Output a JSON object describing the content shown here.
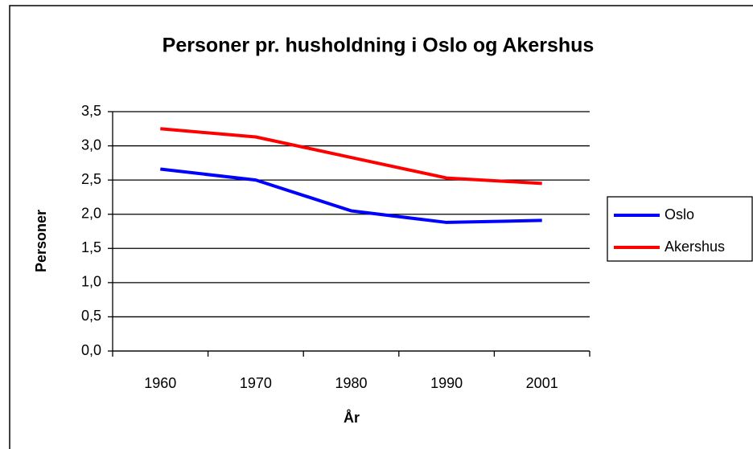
{
  "chart_data": {
    "type": "line",
    "title": "Personer pr. husholdning i Oslo og Akershus",
    "x_label": "År",
    "y_label": "Personer",
    "categories": [
      "1960",
      "1970",
      "1980",
      "1990",
      "2001"
    ],
    "series": [
      {
        "name": "Oslo",
        "color": "#0000ff",
        "values": [
          2.66,
          2.5,
          2.05,
          1.88,
          1.91
        ]
      },
      {
        "name": "Akershus",
        "color": "#ff0000",
        "values": [
          3.25,
          3.13,
          2.83,
          2.53,
          2.45
        ]
      }
    ],
    "ylim": [
      0,
      3.5
    ],
    "yticks": [
      {
        "value": 0,
        "label": "0,0"
      },
      {
        "value": 0.5,
        "label": "0,5"
      },
      {
        "value": 1,
        "label": "1,0"
      },
      {
        "value": 1.5,
        "label": "1,5"
      },
      {
        "value": 2,
        "label": "2,0"
      },
      {
        "value": 2.5,
        "label": "2,5"
      },
      {
        "value": 3,
        "label": "3,0"
      },
      {
        "value": 3.5,
        "label": "3,5"
      }
    ],
    "grid": true,
    "legend": "right"
  }
}
